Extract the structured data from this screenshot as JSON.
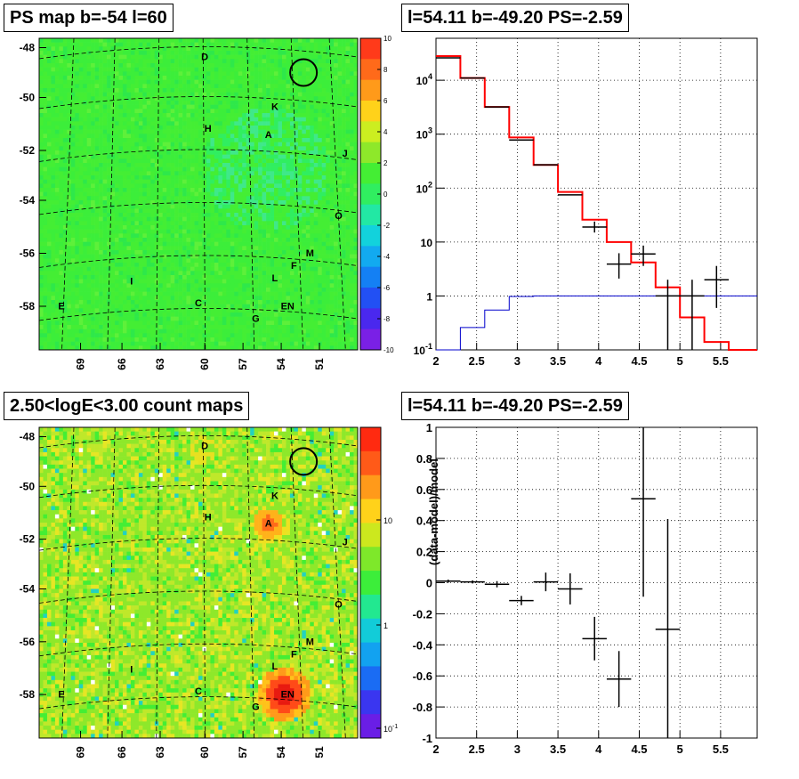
{
  "titles": {
    "tl": "PS map b=-54 l=60",
    "tr": "l=54.11 b=-49.20 PS=-2.59",
    "bl": "2.50<logE<3.00 count maps",
    "br": "l=54.11 b=-49.20 PS=-2.59"
  },
  "colors": {
    "red": "#ff0000",
    "blue": "#0000cc",
    "black": "#000000",
    "grid": "#000000"
  },
  "chart_data": [
    {
      "id": "ps_map",
      "type": "heatmap",
      "title": "PS map b=-54 l=60",
      "y_ticks": [
        "-48",
        "-50",
        "-52",
        "-54",
        "-56",
        "-58"
      ],
      "x_ticks": [
        "69",
        "66",
        "63",
        "60",
        "57",
        "54",
        "51"
      ],
      "colorbar_ticks": [
        "10",
        "8",
        "6",
        "4",
        "2",
        "0",
        "-2",
        "-4",
        "-6",
        "-8",
        "-10"
      ],
      "colorbar_range": [
        -10,
        10
      ],
      "sources": [
        {
          "label": "D"
        },
        {
          "label": "K"
        },
        {
          "label": "H"
        },
        {
          "label": "A"
        },
        {
          "label": "J"
        },
        {
          "label": "O"
        },
        {
          "label": "M"
        },
        {
          "label": "F"
        },
        {
          "label": "L"
        },
        {
          "label": "I"
        },
        {
          "label": "E"
        },
        {
          "label": "C"
        },
        {
          "label": "G"
        },
        {
          "label": "EN"
        }
      ],
      "circle": "marked position near l=52.5, b=-48.8"
    },
    {
      "id": "spectrum",
      "type": "line",
      "title": "l=54.11 b=-49.20 PS=-2.59",
      "x_range": [
        2,
        5.95
      ],
      "y_log": true,
      "y_range": [
        0.1,
        60000
      ],
      "x_ticks": [
        "2",
        "2.5",
        "3",
        "3.5",
        "4",
        "4.5",
        "5",
        "5.5"
      ],
      "y_ticks": [
        "10^-1",
        "1",
        "10",
        "10^2",
        "10^3",
        "10^4"
      ],
      "grid": true,
      "series": [
        {
          "color": "red",
          "style": "step",
          "edges": [
            2,
            2.3,
            2.6,
            2.9,
            3.2,
            3.5,
            3.8,
            4.1,
            4.4,
            4.7,
            5.0,
            5.3,
            5.6,
            5.95
          ],
          "values": [
            28000,
            11000,
            3200,
            870,
            270,
            85,
            26,
            10,
            4.2,
            1.45,
            0.4,
            0.14,
            0.1
          ]
        },
        {
          "color": "blue",
          "style": "step",
          "edges": [
            2,
            2.3,
            2.6,
            2.9,
            3.2,
            3.5,
            3.8,
            4.1,
            4.4,
            4.7,
            5.0,
            5.3,
            5.6,
            5.95
          ],
          "values": [
            0.1,
            0.26,
            0.55,
            0.98,
            1.0,
            1.0,
            1.0,
            1.0,
            1.0,
            1.0,
            1.0,
            1.0,
            1.0
          ]
        },
        {
          "color": "black",
          "style": "points",
          "points": [
            {
              "x": 2.15,
              "y": 26000
            },
            {
              "x": 2.45,
              "y": 11000
            },
            {
              "x": 2.75,
              "y": 3200
            },
            {
              "x": 3.05,
              "y": 780
            },
            {
              "x": 3.35,
              "y": 270
            },
            {
              "x": 3.65,
              "y": 75
            },
            {
              "x": 3.95,
              "y": 19,
              "ylo": 15,
              "yhi": 24
            },
            {
              "x": 4.25,
              "y": 3.9,
              "ylo": 2.1,
              "yhi": 6.2
            },
            {
              "x": 4.55,
              "y": 6.0,
              "ylo": 3.6,
              "yhi": 8.6
            },
            {
              "x": 4.85,
              "y": 1.0,
              "ylo": 0.1,
              "yhi": 2.0
            },
            {
              "x": 5.15,
              "y": 1.0,
              "ylo": 0.1,
              "yhi": 2.0
            },
            {
              "x": 5.45,
              "y": 2.0,
              "ylo": 0.6,
              "yhi": 3.6
            }
          ]
        }
      ]
    },
    {
      "id": "count_map",
      "type": "heatmap",
      "title": "2.50<logE<3.00 count maps",
      "y_ticks": [
        "-48",
        "-50",
        "-52",
        "-54",
        "-56",
        "-58"
      ],
      "x_ticks": [
        "69",
        "66",
        "63",
        "60",
        "57",
        "54",
        "51"
      ],
      "colorbar_ticks": [
        "10",
        "1",
        "10^-1"
      ],
      "colorbar_log": true,
      "sources": [
        {
          "label": "D"
        },
        {
          "label": "K"
        },
        {
          "label": "H"
        },
        {
          "label": "A"
        },
        {
          "label": "J"
        },
        {
          "label": "O"
        },
        {
          "label": "M"
        },
        {
          "label": "F"
        },
        {
          "label": "L"
        },
        {
          "label": "I"
        },
        {
          "label": "E"
        },
        {
          "label": "C"
        },
        {
          "label": "G"
        },
        {
          "label": "EN"
        }
      ]
    },
    {
      "id": "residuals",
      "type": "scatter",
      "title": "l=54.11 b=-49.20 PS=-2.59",
      "ylabel": "(data-model)/model",
      "x_range": [
        2,
        5.95
      ],
      "y_range": [
        -1,
        1
      ],
      "x_ticks": [
        "2",
        "2.5",
        "3",
        "3.5",
        "4",
        "4.5",
        "5",
        "5.5"
      ],
      "y_ticks": [
        "-1",
        "-0.8",
        "-0.6",
        "-0.4",
        "-0.2",
        "0",
        "0.2",
        "0.4",
        "0.6",
        "0.8",
        "1"
      ],
      "grid": true,
      "points": [
        {
          "x": 2.15,
          "y": 0.01,
          "err": 0.01
        },
        {
          "x": 2.45,
          "y": 0.005,
          "err": 0.01
        },
        {
          "x": 2.75,
          "y": -0.01,
          "err": 0.02
        },
        {
          "x": 3.05,
          "y": -0.115,
          "err": 0.03
        },
        {
          "x": 3.35,
          "y": 0.005,
          "err": 0.06
        },
        {
          "x": 3.65,
          "y": -0.04,
          "err": 0.1
        },
        {
          "x": 3.95,
          "y": -0.36,
          "err": 0.14
        },
        {
          "x": 4.25,
          "y": -0.62,
          "err": 0.18
        },
        {
          "x": 4.55,
          "y": 0.54,
          "err": 0.63
        },
        {
          "x": 4.85,
          "y": -0.3,
          "err": 0.71
        }
      ]
    }
  ]
}
